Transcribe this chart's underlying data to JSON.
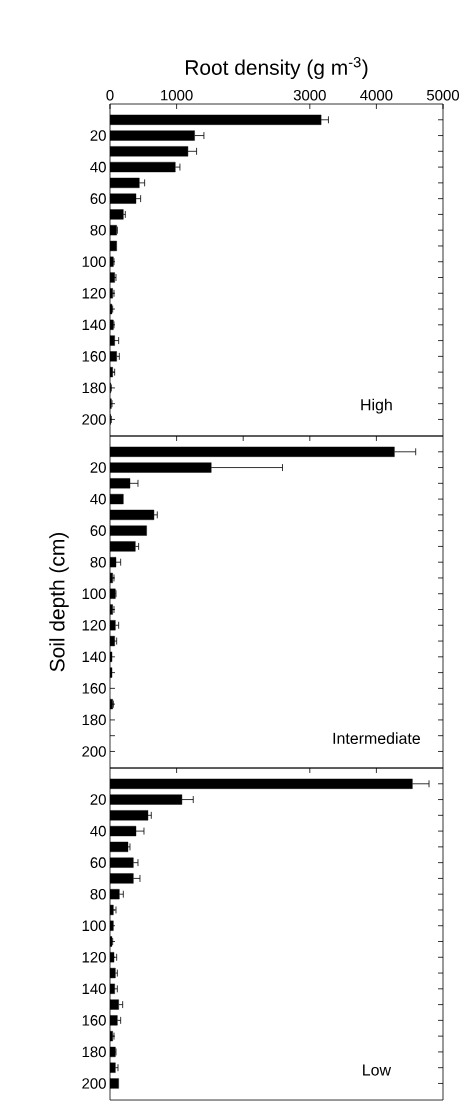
{
  "chart_data": [
    {
      "type": "bar",
      "orientation": "horizontal",
      "xlabel": "Root density (g m$^{-3}$)",
      "color": "#000000",
      "categories": [
        null,
        "20",
        null,
        "40",
        null,
        "60",
        null,
        "80",
        null,
        "100",
        null,
        "120",
        null,
        "140",
        null,
        "160",
        null,
        "180",
        null,
        "200"
      ],
      "values": [
        3170,
        1270,
        1170,
        980,
        440,
        390,
        200,
        100,
        100,
        50,
        70,
        40,
        30,
        50,
        70,
        100,
        40,
        10,
        20,
        10
      ],
      "errors": [
        [
          3170,
          3280
        ],
        [
          1270,
          1410
        ],
        [
          1170,
          1300
        ],
        [
          980,
          1050
        ],
        [
          440,
          520
        ],
        [
          390,
          460
        ],
        [
          200,
          230
        ],
        [
          100,
          110
        ],
        null,
        [
          50,
          60
        ],
        [
          70,
          90
        ],
        [
          40,
          60
        ],
        [
          30,
          40
        ],
        [
          50,
          60
        ],
        [
          70,
          130
        ],
        [
          100,
          140
        ],
        [
          40,
          70
        ],
        [
          10,
          20
        ],
        [
          20,
          30
        ],
        [
          10,
          20
        ]
      ],
      "xlim": [
        0,
        5000
      ],
      "xticks": [
        0,
        1000,
        3000,
        4000,
        5000
      ],
      "annotations": [
        "High"
      ]
    },
    {
      "type": "bar",
      "orientation": "horizontal",
      "ylabel": "Soil depth (cm)",
      "color": "#000000",
      "categories": [
        null,
        "20",
        null,
        "40",
        null,
        "60",
        null,
        "80",
        null,
        "100",
        null,
        "120",
        null,
        "140",
        null,
        "160",
        null,
        "180",
        null,
        "200"
      ],
      "values": [
        4270,
        1520,
        300,
        200,
        660,
        550,
        380,
        90,
        40,
        80,
        40,
        80,
        70,
        30,
        30,
        null,
        40,
        null,
        null,
        null
      ],
      "errors": [
        [
          4270,
          4590
        ],
        [
          1520,
          2590
        ],
        [
          300,
          420
        ],
        null,
        [
          660,
          710
        ],
        null,
        [
          380,
          430
        ],
        [
          90,
          160
        ],
        [
          40,
          60
        ],
        [
          80,
          90
        ],
        [
          40,
          60
        ],
        [
          80,
          130
        ],
        [
          70,
          100
        ],
        null,
        null,
        null,
        [
          40,
          50
        ],
        null,
        null,
        null
      ],
      "xlim": [
        0,
        5000
      ],
      "xticks": [
        1000,
        2000,
        3000,
        4000
      ],
      "tick_labels": "y",
      "annotations": [
        "Intermediate"
      ]
    },
    {
      "type": "bar",
      "orientation": "horizontal",
      "color": "#000000",
      "categories": [
        null,
        "20",
        null,
        "40",
        null,
        "60",
        null,
        "80",
        null,
        "100",
        null,
        "120",
        null,
        "140",
        null,
        "160",
        null,
        "180",
        null,
        "200"
      ],
      "values": [
        4540,
        1080,
        570,
        390,
        270,
        350,
        350,
        140,
        50,
        50,
        30,
        60,
        80,
        70,
        130,
        110,
        40,
        80,
        80,
        130
      ],
      "errors": [
        [
          4540,
          4790
        ],
        [
          1080,
          1250
        ],
        [
          570,
          620
        ],
        [
          390,
          510
        ],
        [
          270,
          300
        ],
        [
          350,
          420
        ],
        [
          350,
          450
        ],
        [
          140,
          200
        ],
        [
          50,
          90
        ],
        null,
        [
          30,
          40
        ],
        [
          60,
          100
        ],
        [
          80,
          110
        ],
        [
          70,
          110
        ],
        [
          130,
          190
        ],
        [
          110,
          160
        ],
        [
          40,
          60
        ],
        [
          80,
          90
        ],
        [
          80,
          120
        ],
        null
      ],
      "xlim": [
        0,
        5000
      ],
      "xticks": [
        1000,
        3000,
        4000
      ],
      "tick_labels": "y",
      "annotations": [
        "Low"
      ]
    }
  ]
}
